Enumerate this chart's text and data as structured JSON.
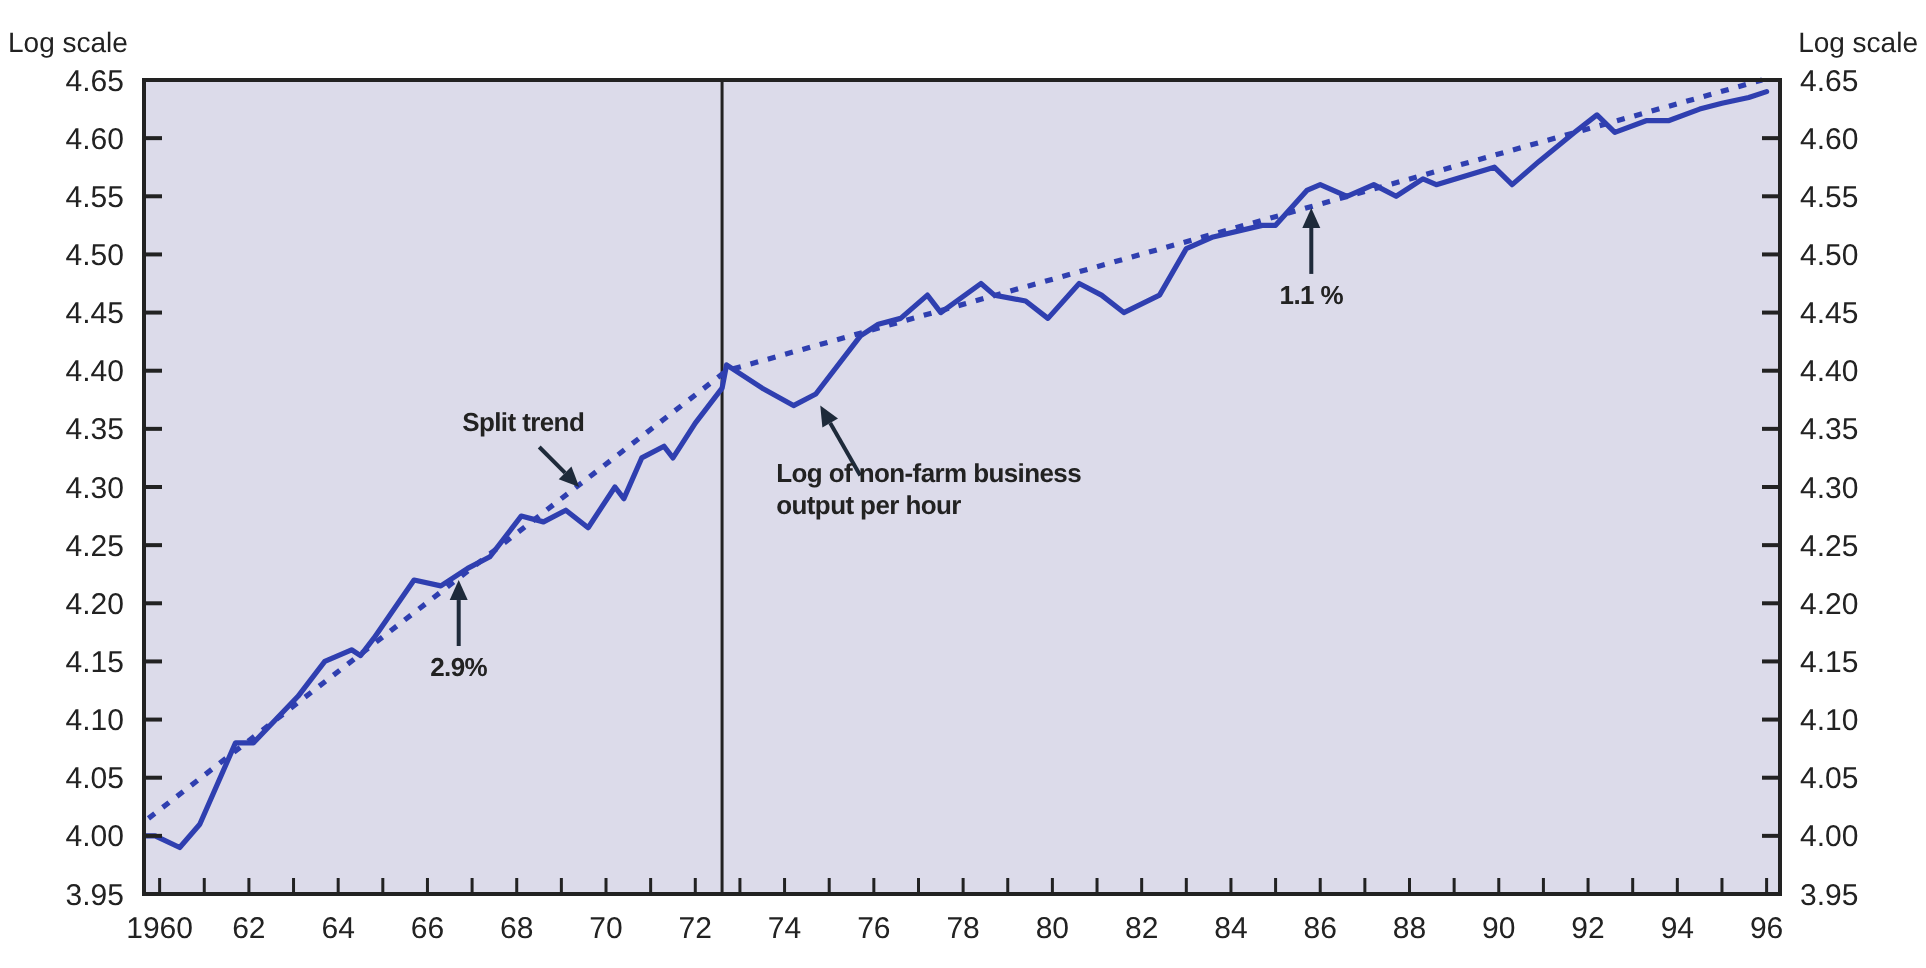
{
  "chart_data": {
    "type": "line",
    "ylabel": "Log scale",
    "y2label": "Log scale",
    "xlim": [
      1959.65,
      1996.3
    ],
    "xticks": [
      {
        "value": 1960,
        "label": "1960"
      },
      {
        "value": 1961,
        "label": null
      },
      {
        "value": 1962,
        "label": "62"
      },
      {
        "value": 1963,
        "label": null
      },
      {
        "value": 1964,
        "label": "64"
      },
      {
        "value": 1965,
        "label": null
      },
      {
        "value": 1966,
        "label": "66"
      },
      {
        "value": 1967,
        "label": null
      },
      {
        "value": 1968,
        "label": "68"
      },
      {
        "value": 1969,
        "label": null
      },
      {
        "value": 1970,
        "label": "70"
      },
      {
        "value": 1971,
        "label": null
      },
      {
        "value": 1972,
        "label": "72"
      },
      {
        "value": 1973,
        "label": null
      },
      {
        "value": 1974,
        "label": "74"
      },
      {
        "value": 1975,
        "label": null
      },
      {
        "value": 1976,
        "label": "76"
      },
      {
        "value": 1977,
        "label": null
      },
      {
        "value": 1978,
        "label": "78"
      },
      {
        "value": 1979,
        "label": null
      },
      {
        "value": 1980,
        "label": "80"
      },
      {
        "value": 1981,
        "label": null
      },
      {
        "value": 1982,
        "label": "82"
      },
      {
        "value": 1983,
        "label": null
      },
      {
        "value": 1984,
        "label": "84"
      },
      {
        "value": 1985,
        "label": null
      },
      {
        "value": 1986,
        "label": "86"
      },
      {
        "value": 1987,
        "label": null
      },
      {
        "value": 1988,
        "label": "88"
      },
      {
        "value": 1989,
        "label": null
      },
      {
        "value": 1990,
        "label": "90"
      },
      {
        "value": 1991,
        "label": null
      },
      {
        "value": 1992,
        "label": "92"
      },
      {
        "value": 1993,
        "label": null
      },
      {
        "value": 1994,
        "label": "94"
      },
      {
        "value": 1995,
        "label": null
      },
      {
        "value": 1996,
        "label": "96"
      }
    ],
    "ylim": [
      3.95,
      4.65
    ],
    "yticks": [
      {
        "value": 3.95,
        "label": "3.95"
      },
      {
        "value": 4.0,
        "label": "4.00"
      },
      {
        "value": 4.05,
        "label": "4.05"
      },
      {
        "value": 4.1,
        "label": "4.10"
      },
      {
        "value": 4.15,
        "label": "4.15"
      },
      {
        "value": 4.2,
        "label": "4.20"
      },
      {
        "value": 4.25,
        "label": "4.25"
      },
      {
        "value": 4.3,
        "label": "4.30"
      },
      {
        "value": 4.35,
        "label": "4.35"
      },
      {
        "value": 4.4,
        "label": "4.40"
      },
      {
        "value": 4.45,
        "label": "4.45"
      },
      {
        "value": 4.5,
        "label": "4.50"
      },
      {
        "value": 4.55,
        "label": "4.55"
      },
      {
        "value": 4.6,
        "label": "4.60"
      },
      {
        "value": 4.65,
        "label": "4.65"
      }
    ],
    "y2lim": [
      3.95,
      4.65
    ],
    "y2ticks": [
      {
        "value": 3.95,
        "label": "3.95"
      },
      {
        "value": 4.0,
        "label": "4.00"
      },
      {
        "value": 4.05,
        "label": "4.05"
      },
      {
        "value": 4.1,
        "label": "4.10"
      },
      {
        "value": 4.15,
        "label": "4.15"
      },
      {
        "value": 4.2,
        "label": "4.20"
      },
      {
        "value": 4.25,
        "label": "4.25"
      },
      {
        "value": 4.3,
        "label": "4.30"
      },
      {
        "value": 4.35,
        "label": "4.35"
      },
      {
        "value": 4.4,
        "label": "4.40"
      },
      {
        "value": 4.45,
        "label": "4.45"
      },
      {
        "value": 4.5,
        "label": "4.50"
      },
      {
        "value": 4.55,
        "label": "4.55"
      },
      {
        "value": 4.6,
        "label": "4.60"
      },
      {
        "value": 4.65,
        "label": "4.65"
      }
    ],
    "grid": false,
    "marker": "none",
    "series": [
      {
        "color": "#2f3fb0",
        "line_style": "solid",
        "x": [
          1959.7,
          1959.9,
          1960.45,
          1960.9,
          1961.7,
          1962.1,
          1963.1,
          1963.7,
          1964.3,
          1964.5,
          1964.8,
          1965.7,
          1966.3,
          1966.9,
          1967.4,
          1968.1,
          1968.6,
          1969.1,
          1969.6,
          1970.2,
          1970.4,
          1970.8,
          1971.3,
          1971.5,
          1972.0,
          1972.6,
          1972.7,
          1973.5,
          1974.2,
          1974.7,
          1975.7,
          1976.1,
          1976.6,
          1977.2,
          1977.5,
          1978.4,
          1978.7,
          1979.4,
          1979.9,
          1980.6,
          1981.1,
          1981.6,
          1982.4,
          1983.0,
          1983.6,
          1984.7,
          1985.0,
          1985.7,
          1986.0,
          1986.6,
          1987.2,
          1987.7,
          1988.3,
          1988.6,
          1989.9,
          1990.3,
          1990.9,
          1991.7,
          1992.2,
          1992.6,
          1993.3,
          1993.8,
          1994.5,
          1995.0,
          1995.6,
          1996.0
        ],
        "values": [
          4.0,
          4.0,
          3.99,
          4.01,
          4.08,
          4.08,
          4.12,
          4.15,
          4.16,
          4.155,
          4.17,
          4.22,
          4.215,
          4.23,
          4.24,
          4.275,
          4.27,
          4.28,
          4.265,
          4.3,
          4.29,
          4.325,
          4.335,
          4.325,
          4.355,
          4.385,
          4.405,
          4.385,
          4.37,
          4.38,
          4.43,
          4.44,
          4.445,
          4.465,
          4.45,
          4.475,
          4.465,
          4.46,
          4.445,
          4.475,
          4.465,
          4.45,
          4.465,
          4.505,
          4.515,
          4.525,
          4.525,
          4.555,
          4.56,
          4.55,
          4.56,
          4.55,
          4.565,
          4.56,
          4.575,
          4.56,
          4.58,
          4.605,
          4.62,
          4.605,
          4.615,
          4.615,
          4.625,
          4.63,
          4.635,
          4.64
        ]
      },
      {
        "color": "#2f3fb0",
        "line_style": "dashed",
        "x": [
          1959.75,
          1972.7,
          1995.9
        ],
        "values": [
          4.015,
          4.4,
          4.65
        ]
      }
    ],
    "ref_lines": [
      {
        "axis": "x",
        "value": 1972.6,
        "color": "#222222"
      }
    ],
    "annotations": [
      {
        "text": "Split trend",
        "x": 1969.4,
        "y": 4.3
      },
      {
        "text": "2.9%",
        "x": 1966.7,
        "y": 4.22
      },
      {
        "text": "Log of non-farm business output per hour",
        "x": 1974.8,
        "y": 4.37
      },
      {
        "text": "1.1 %",
        "x": 1985.8,
        "y": 4.54
      }
    ]
  }
}
